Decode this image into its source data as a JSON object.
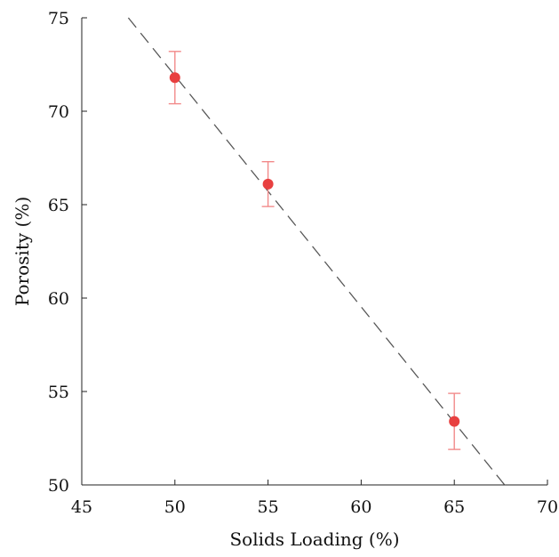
{
  "chart_data": {
    "type": "scatter",
    "title": "",
    "xlabel": "Solids Loading (%)",
    "ylabel": "Porosity (%)",
    "xlim": [
      45,
      70
    ],
    "ylim": [
      50,
      75
    ],
    "xticks": [
      45,
      50,
      55,
      60,
      65,
      70
    ],
    "yticks": [
      50,
      55,
      60,
      65,
      70,
      75
    ],
    "grid": false,
    "series": [
      {
        "points": [
          {
            "x": 50,
            "y": 71.8,
            "err": 1.4
          },
          {
            "x": 55,
            "y": 66.1,
            "err": 1.2
          },
          {
            "x": 65,
            "y": 53.4,
            "err": 1.5
          }
        ],
        "color": "#e84040",
        "error_bar_color": "#f28a8a"
      }
    ],
    "fit_line": {
      "style": "dashed",
      "color": "#555555",
      "points": [
        [
          47.5,
          75.0
        ],
        [
          67.7,
          50.0
        ]
      ]
    }
  }
}
